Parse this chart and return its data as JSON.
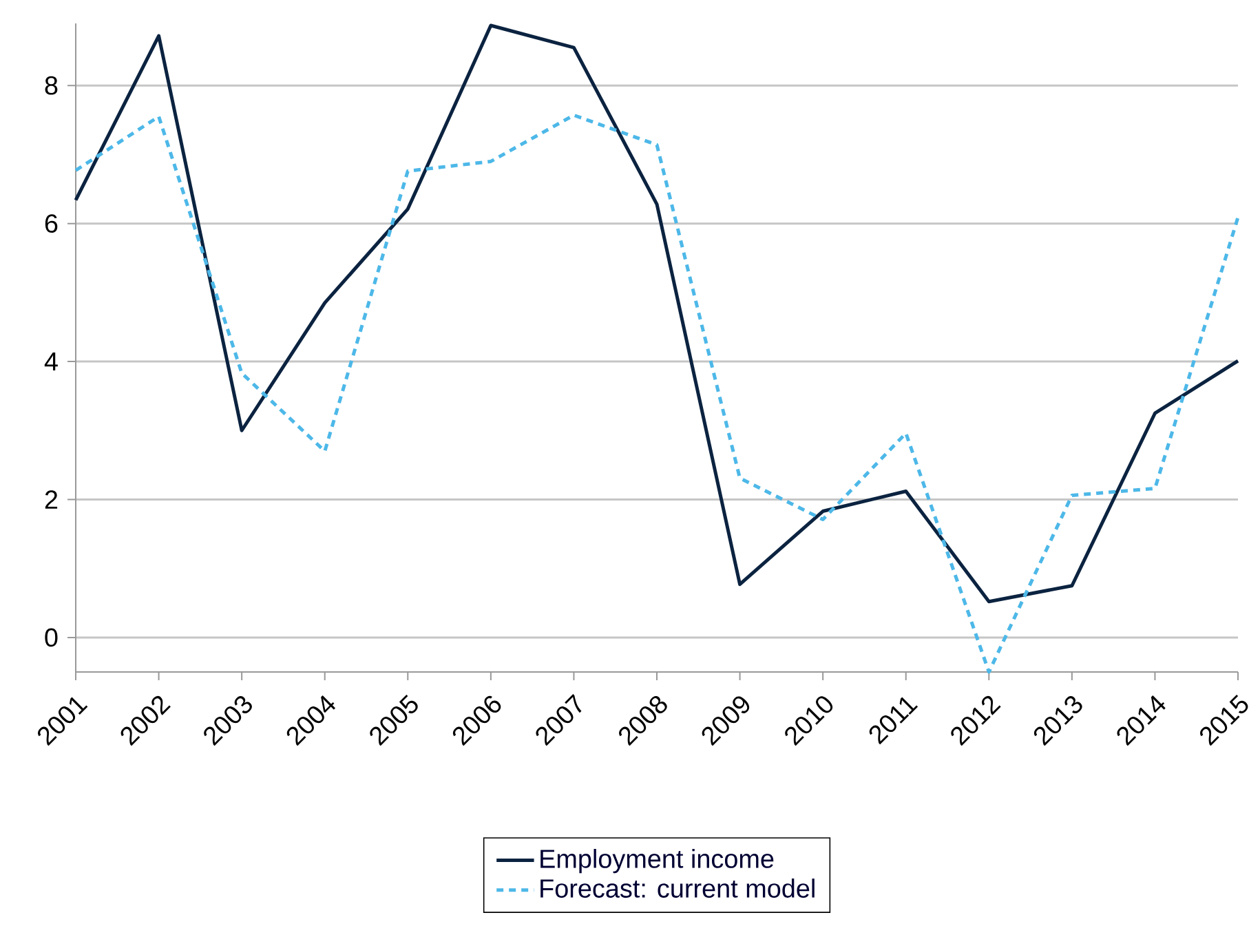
{
  "chart_data": {
    "type": "line",
    "categories": [
      "2001",
      "2002",
      "2003",
      "2004",
      "2005",
      "2006",
      "2007",
      "2008",
      "2009",
      "2010",
      "2011",
      "2012",
      "2013",
      "2014",
      "2015"
    ],
    "series": [
      {
        "name": "Employment income",
        "color": "#0b2340",
        "line_style": "solid",
        "values": [
          6.34,
          8.72,
          3.0,
          4.85,
          6.21,
          8.87,
          8.55,
          6.28,
          0.77,
          1.83,
          2.12,
          0.52,
          0.75,
          3.25,
          4.01
        ]
      },
      {
        "name": "Forecast: current model",
        "color": "#4db8e8",
        "line_style": "dashed",
        "values": [
          6.77,
          7.55,
          3.83,
          2.7,
          6.76,
          6.9,
          7.57,
          7.14,
          2.31,
          1.71,
          2.96,
          -0.5,
          2.06,
          2.16,
          6.09
        ]
      }
    ],
    "ylim": [
      -0.5,
      8.9
    ],
    "yticks": [
      0,
      2,
      4,
      6,
      8
    ],
    "grid": "y",
    "legend": "bottom",
    "marker": "none"
  }
}
